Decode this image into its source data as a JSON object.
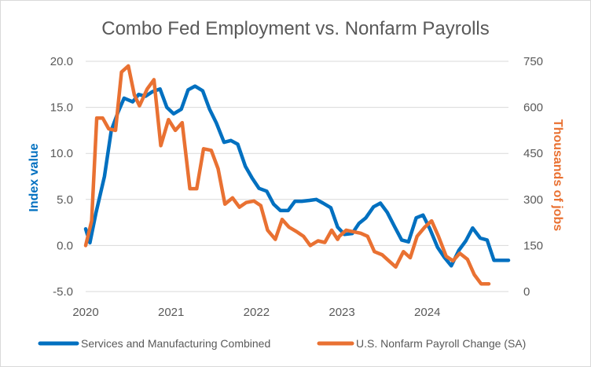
{
  "chart_data": {
    "type": "line",
    "title": "Combo Fed Employment vs. Nonfarm Payrolls",
    "ylabel_left": "Index value",
    "ylabel_right": "Thousands of jobs",
    "x_tick_labels": [
      "2020",
      "2021",
      "2022",
      "2023",
      "2024"
    ],
    "x_range": [
      2020.0,
      2024.95
    ],
    "y_left": {
      "range": [
        -5,
        20
      ],
      "ticks": [
        -5,
        0,
        5,
        10,
        15,
        20
      ],
      "tick_labels": [
        "-5.0",
        "0.0",
        "5.0",
        "10.0",
        "15.0",
        "20.0"
      ]
    },
    "y_right": {
      "range": [
        0,
        750
      ],
      "ticks": [
        0,
        150,
        300,
        450,
        600,
        750
      ],
      "tick_labels": [
        "0",
        "150",
        "300",
        "450",
        "600",
        "750"
      ]
    },
    "grid": true,
    "legend_position": "bottom",
    "series": [
      {
        "name": "Services and Manufacturing Combined",
        "axis": "left",
        "color": "#0070c0",
        "x": [
          2020.0,
          2020.05,
          2020.12,
          2020.22,
          2020.3,
          2020.38,
          2020.45,
          2020.55,
          2020.62,
          2020.7,
          2020.78,
          2020.87,
          2020.95,
          2021.03,
          2021.12,
          2021.2,
          2021.28,
          2021.37,
          2021.45,
          2021.53,
          2021.62,
          2021.7,
          2021.78,
          2021.87,
          2021.95,
          2022.03,
          2022.12,
          2022.2,
          2022.28,
          2022.37,
          2022.45,
          2022.53,
          2022.62,
          2022.7,
          2022.78,
          2022.87,
          2022.95,
          2023.03,
          2023.12,
          2023.2,
          2023.28,
          2023.37,
          2023.45,
          2023.53,
          2023.62,
          2023.7,
          2023.78,
          2023.87,
          2023.95,
          2024.03,
          2024.12,
          2024.2,
          2024.28,
          2024.37,
          2024.45,
          2024.53,
          2024.62,
          2024.7,
          2024.78,
          2024.87,
          2024.95
        ],
        "values": [
          1.8,
          0.3,
          3.5,
          7.5,
          12.5,
          14.5,
          16.0,
          15.6,
          16.4,
          16.2,
          16.7,
          17.0,
          15.0,
          14.3,
          14.8,
          16.9,
          17.3,
          16.8,
          14.8,
          13.3,
          11.2,
          11.4,
          11.0,
          8.6,
          7.3,
          6.2,
          5.9,
          4.5,
          3.8,
          3.8,
          4.8,
          4.8,
          4.9,
          5.0,
          4.6,
          4.1,
          2.0,
          1.2,
          1.3,
          2.4,
          3.0,
          4.2,
          4.6,
          3.6,
          2.0,
          0.6,
          0.4,
          3.0,
          3.3,
          1.8,
          -0.2,
          -1.3,
          -2.2,
          -0.5,
          0.5,
          1.9,
          0.8,
          0.6,
          -1.6,
          -1.6,
          -1.6
        ]
      },
      {
        "name": "U.S. Nonfarm Payroll Change (SA)",
        "axis": "right",
        "color": "#e97132",
        "x": [
          2020.0,
          2020.07,
          2020.13,
          2020.2,
          2020.27,
          2020.35,
          2020.42,
          2020.5,
          2020.57,
          2020.63,
          2020.72,
          2020.8,
          2020.88,
          2020.97,
          2021.05,
          2021.13,
          2021.22,
          2021.3,
          2021.38,
          2021.47,
          2021.55,
          2021.63,
          2021.72,
          2021.8,
          2021.88,
          2021.97,
          2022.05,
          2022.13,
          2022.22,
          2022.3,
          2022.38,
          2022.47,
          2022.55,
          2022.63,
          2022.72,
          2022.8,
          2022.88,
          2022.95,
          2022.97,
          2023.05,
          2023.13,
          2023.22,
          2023.3,
          2023.38,
          2023.47,
          2023.55,
          2023.63,
          2023.72,
          2023.8,
          2023.88,
          2023.97,
          2024.05,
          2024.13,
          2024.22,
          2024.3,
          2024.38,
          2024.47,
          2024.55,
          2024.63,
          2024.72
        ],
        "values": [
          150,
          230,
          565,
          565,
          530,
          525,
          715,
          735,
          640,
          605,
          660,
          690,
          475,
          560,
          525,
          550,
          335,
          335,
          465,
          460,
          400,
          285,
          305,
          275,
          290,
          295,
          280,
          200,
          170,
          235,
          210,
          195,
          180,
          150,
          165,
          160,
          200,
          170,
          180,
          200,
          195,
          190,
          180,
          130,
          120,
          100,
          80,
          130,
          110,
          180,
          210,
          230,
          180,
          115,
          100,
          125,
          105,
          55,
          25,
          25
        ]
      }
    ]
  }
}
